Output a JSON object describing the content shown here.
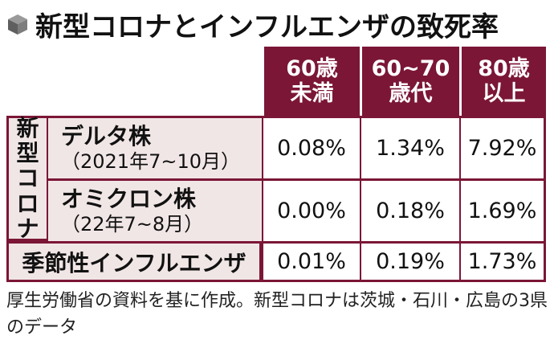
{
  "title": "新型コロナとインフルエンザの致死率",
  "header": {
    "col1": [
      "60歳",
      "未満"
    ],
    "col2": [
      "60~70",
      "歳代"
    ],
    "col3": [
      "80歳",
      "以上"
    ]
  },
  "covid_group_label": [
    "新",
    "型",
    "コ",
    "ロ",
    "ナ"
  ],
  "rows": [
    {
      "name": "デルタ株",
      "period": "（2021年7~10月）",
      "values": [
        "0.08%",
        "1.34%",
        "7.92%"
      ]
    },
    {
      "name": "オミクロン株",
      "period": "（22年7~8月）",
      "values": [
        "0.00%",
        "0.18%",
        "1.69%"
      ]
    }
  ],
  "flu": {
    "name": "季節性インフルエンザ",
    "values": [
      "0.01%",
      "0.19%",
      "1.73%"
    ]
  },
  "note": "厚生労働省の資料を基に作成。新型コロナは茨城・石川・広島の3県のデータ",
  "colors": {
    "accent": "#7b1636",
    "label_bg": "#f1e6e6"
  }
}
